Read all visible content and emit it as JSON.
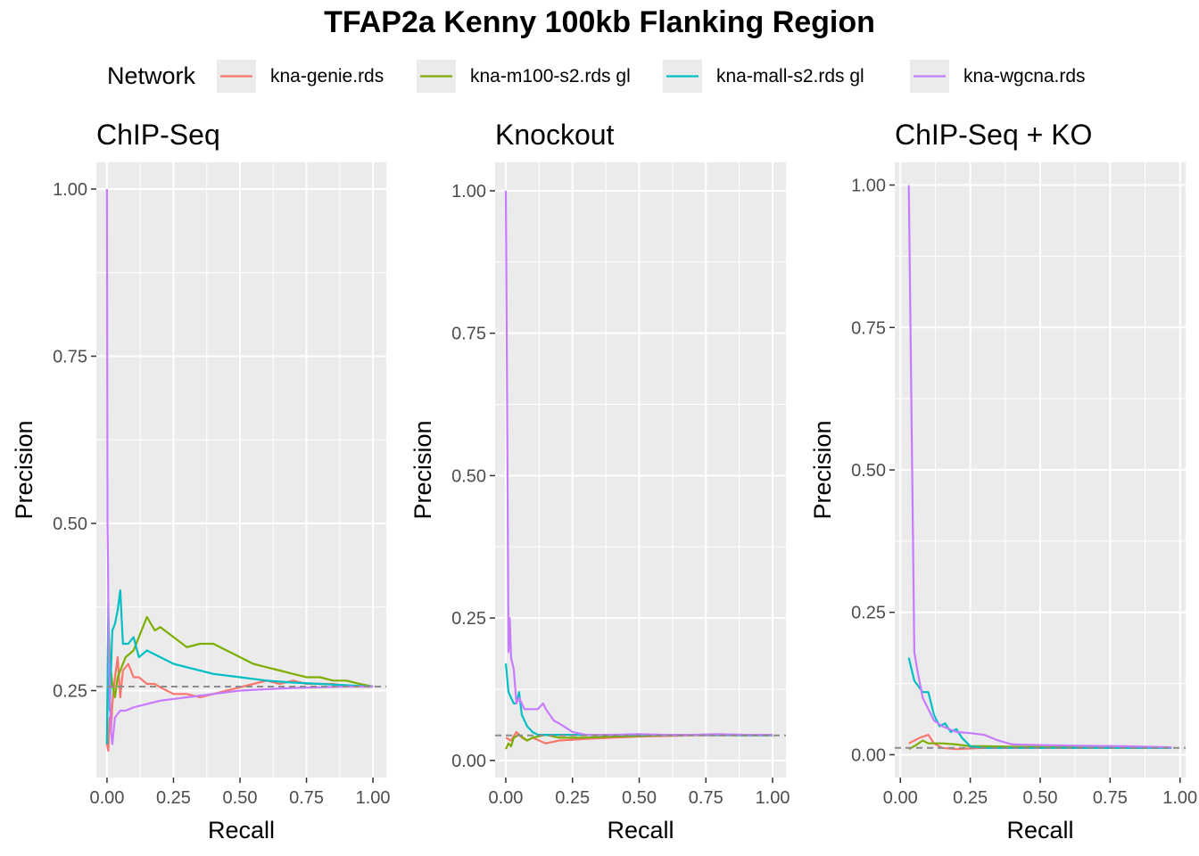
{
  "title": "TFAP2a Kenny 100kb Flanking Region",
  "legend": {
    "title": "Network",
    "position": "top",
    "entries": [
      {
        "label": "kna-genie.rds",
        "color": "#F8766D"
      },
      {
        "label": "kna-m100-s2.rds gl",
        "color": "#7CAE00"
      },
      {
        "label": "kna-mall-s2.rds gl",
        "color": "#00BFC4"
      },
      {
        "label": "kna-wgcna.rds",
        "color": "#C77CFF"
      }
    ]
  },
  "chart_data": [
    {
      "type": "line",
      "title": "ChIP-Seq",
      "xlabel": "Recall",
      "ylabel": "Precision",
      "xlim": [
        -0.04,
        1.05
      ],
      "ylim": [
        0.12,
        1.04
      ],
      "xticks": [
        "0.00",
        "0.25",
        "0.50",
        "0.75",
        "1.00"
      ],
      "yticks": [
        "0.25",
        "0.50",
        "0.75",
        "1.00"
      ],
      "baseline": 0.256,
      "grid": true,
      "series": [
        {
          "name": "kna-genie.rds",
          "x": [
            0.0,
            0.005,
            0.01,
            0.015,
            0.02,
            0.03,
            0.04,
            0.05,
            0.06,
            0.08,
            0.1,
            0.12,
            0.15,
            0.18,
            0.2,
            0.25,
            0.3,
            0.35,
            0.4,
            0.45,
            0.5,
            0.55,
            0.6,
            0.65,
            0.7,
            0.75,
            0.8,
            0.85,
            0.9,
            0.95,
            1.0
          ],
          "y": [
            0.17,
            0.16,
            0.21,
            0.19,
            0.23,
            0.27,
            0.3,
            0.24,
            0.28,
            0.29,
            0.27,
            0.27,
            0.26,
            0.26,
            0.255,
            0.245,
            0.245,
            0.24,
            0.245,
            0.25,
            0.255,
            0.26,
            0.265,
            0.26,
            0.265,
            0.26,
            0.26,
            0.26,
            0.257,
            0.256,
            0.256
          ]
        },
        {
          "name": "kna-m100-s2.rds gl",
          "x": [
            0.0,
            0.005,
            0.01,
            0.02,
            0.03,
            0.04,
            0.05,
            0.07,
            0.1,
            0.12,
            0.15,
            0.18,
            0.2,
            0.25,
            0.3,
            0.35,
            0.4,
            0.45,
            0.5,
            0.55,
            0.6,
            0.65,
            0.7,
            0.75,
            0.8,
            0.85,
            0.9,
            0.95,
            1.0
          ],
          "y": [
            0.17,
            0.36,
            0.3,
            0.26,
            0.24,
            0.27,
            0.28,
            0.3,
            0.31,
            0.33,
            0.36,
            0.34,
            0.345,
            0.33,
            0.315,
            0.32,
            0.32,
            0.31,
            0.3,
            0.29,
            0.285,
            0.28,
            0.275,
            0.27,
            0.27,
            0.265,
            0.265,
            0.26,
            0.256
          ]
        },
        {
          "name": "kna-mall-s2.rds gl",
          "x": [
            0.0,
            0.005,
            0.01,
            0.02,
            0.03,
            0.04,
            0.05,
            0.06,
            0.07,
            0.08,
            0.1,
            0.12,
            0.15,
            0.2,
            0.25,
            0.3,
            0.35,
            0.4,
            0.5,
            0.6,
            0.7,
            0.8,
            0.9,
            1.0
          ],
          "y": [
            0.17,
            0.38,
            0.22,
            0.34,
            0.35,
            0.37,
            0.4,
            0.32,
            0.32,
            0.32,
            0.33,
            0.3,
            0.31,
            0.3,
            0.29,
            0.285,
            0.28,
            0.275,
            0.27,
            0.265,
            0.262,
            0.26,
            0.258,
            0.256
          ]
        },
        {
          "name": "kna-wgcna.rds",
          "x": [
            0.0,
            0.002,
            0.004,
            0.006,
            0.01,
            0.015,
            0.02,
            0.03,
            0.05,
            0.07,
            0.1,
            0.15,
            0.2,
            0.3,
            0.4,
            0.5,
            0.6,
            0.7,
            0.8,
            0.9,
            1.0
          ],
          "y": [
            1.0,
            0.5,
            0.44,
            0.32,
            0.25,
            0.19,
            0.17,
            0.21,
            0.22,
            0.22,
            0.225,
            0.23,
            0.235,
            0.24,
            0.245,
            0.25,
            0.252,
            0.254,
            0.255,
            0.256,
            0.256
          ]
        }
      ]
    },
    {
      "type": "line",
      "title": "Knockout",
      "xlabel": "Recall",
      "ylabel": "Precision",
      "xlim": [
        -0.04,
        1.05
      ],
      "ylim": [
        -0.03,
        1.05
      ],
      "xticks": [
        "0.00",
        "0.25",
        "0.50",
        "0.75",
        "1.00"
      ],
      "yticks": [
        "0.00",
        "0.25",
        "0.50",
        "0.75",
        "1.00"
      ],
      "baseline": 0.044,
      "grid": true,
      "series": [
        {
          "name": "kna-genie.rds",
          "x": [
            0.0,
            0.02,
            0.04,
            0.06,
            0.08,
            0.1,
            0.15,
            0.2,
            0.3,
            0.4,
            0.5,
            0.6,
            0.7,
            0.8,
            0.9,
            1.0
          ],
          "y": [
            0.04,
            0.035,
            0.05,
            0.04,
            0.035,
            0.04,
            0.03,
            0.035,
            0.038,
            0.04,
            0.042,
            0.043,
            0.044,
            0.044,
            0.044,
            0.044
          ]
        },
        {
          "name": "kna-m100-s2.rds gl",
          "x": [
            0.0,
            0.01,
            0.02,
            0.03,
            0.05,
            0.08,
            0.1,
            0.15,
            0.2,
            0.3,
            0.4,
            0.5,
            0.6,
            0.7,
            0.8,
            0.9,
            1.0
          ],
          "y": [
            0.02,
            0.03,
            0.025,
            0.04,
            0.045,
            0.035,
            0.04,
            0.045,
            0.04,
            0.04,
            0.042,
            0.043,
            0.044,
            0.045,
            0.045,
            0.044,
            0.044
          ]
        },
        {
          "name": "kna-mall-s2.rds gl",
          "x": [
            0.0,
            0.01,
            0.02,
            0.03,
            0.04,
            0.05,
            0.06,
            0.08,
            0.1,
            0.12,
            0.15,
            0.2,
            0.3,
            0.4,
            0.5,
            0.6,
            0.7,
            0.8,
            0.9,
            1.0
          ],
          "y": [
            0.17,
            0.12,
            0.11,
            0.1,
            0.1,
            0.12,
            0.08,
            0.06,
            0.05,
            0.045,
            0.045,
            0.045,
            0.045,
            0.045,
            0.045,
            0.045,
            0.045,
            0.045,
            0.044,
            0.044
          ]
        },
        {
          "name": "kna-wgcna.rds",
          "x": [
            0.0,
            0.005,
            0.01,
            0.015,
            0.02,
            0.03,
            0.04,
            0.05,
            0.07,
            0.1,
            0.12,
            0.14,
            0.15,
            0.18,
            0.2,
            0.25,
            0.3,
            0.4,
            0.5,
            0.6,
            0.7,
            0.8,
            0.9,
            1.0
          ],
          "y": [
            1.0,
            0.62,
            0.19,
            0.25,
            0.18,
            0.16,
            0.1,
            0.11,
            0.09,
            0.09,
            0.09,
            0.1,
            0.09,
            0.07,
            0.065,
            0.05,
            0.045,
            0.045,
            0.046,
            0.045,
            0.045,
            0.046,
            0.045,
            0.045
          ]
        }
      ]
    },
    {
      "type": "line",
      "title": "ChIP-Seq + KO",
      "xlabel": "Recall",
      "ylabel": "Precision",
      "xlim": [
        -0.02,
        1.02
      ],
      "ylim": [
        -0.04,
        1.04
      ],
      "xticks": [
        "0.00",
        "0.25",
        "0.50",
        "0.75",
        "1.00"
      ],
      "yticks": [
        "0.00",
        "0.25",
        "0.50",
        "0.75",
        "1.00"
      ],
      "baseline": 0.012,
      "grid": true,
      "series": [
        {
          "name": "kna-genie.rds",
          "x": [
            0.03,
            0.05,
            0.07,
            0.1,
            0.12,
            0.15,
            0.2,
            0.3,
            0.4,
            0.6,
            0.8,
            0.97
          ],
          "y": [
            0.02,
            0.025,
            0.03,
            0.035,
            0.02,
            0.012,
            0.01,
            0.012,
            0.013,
            0.013,
            0.013,
            0.013
          ]
        },
        {
          "name": "kna-m100-s2.rds gl",
          "x": [
            0.03,
            0.05,
            0.08,
            0.1,
            0.15,
            0.2,
            0.25,
            0.3,
            0.4,
            0.6,
            0.8,
            0.97
          ],
          "y": [
            0.01,
            0.015,
            0.025,
            0.02,
            0.02,
            0.018,
            0.015,
            0.015,
            0.014,
            0.013,
            0.013,
            0.013
          ]
        },
        {
          "name": "kna-mall-s2.rds gl",
          "x": [
            0.03,
            0.05,
            0.08,
            0.1,
            0.12,
            0.14,
            0.16,
            0.18,
            0.2,
            0.22,
            0.25,
            0.3,
            0.4,
            0.5,
            0.6,
            0.8,
            0.97
          ],
          "y": [
            0.17,
            0.13,
            0.11,
            0.11,
            0.07,
            0.05,
            0.055,
            0.04,
            0.045,
            0.03,
            0.015,
            0.012,
            0.012,
            0.012,
            0.012,
            0.012,
            0.012
          ]
        },
        {
          "name": "kna-wgcna.rds",
          "x": [
            0.03,
            0.05,
            0.06,
            0.08,
            0.1,
            0.12,
            0.15,
            0.2,
            0.25,
            0.3,
            0.35,
            0.4,
            0.5,
            0.6,
            0.8,
            0.97
          ],
          "y": [
            1.0,
            0.18,
            0.15,
            0.1,
            0.08,
            0.06,
            0.05,
            0.04,
            0.038,
            0.035,
            0.025,
            0.018,
            0.017,
            0.016,
            0.015,
            0.013
          ]
        }
      ]
    }
  ]
}
